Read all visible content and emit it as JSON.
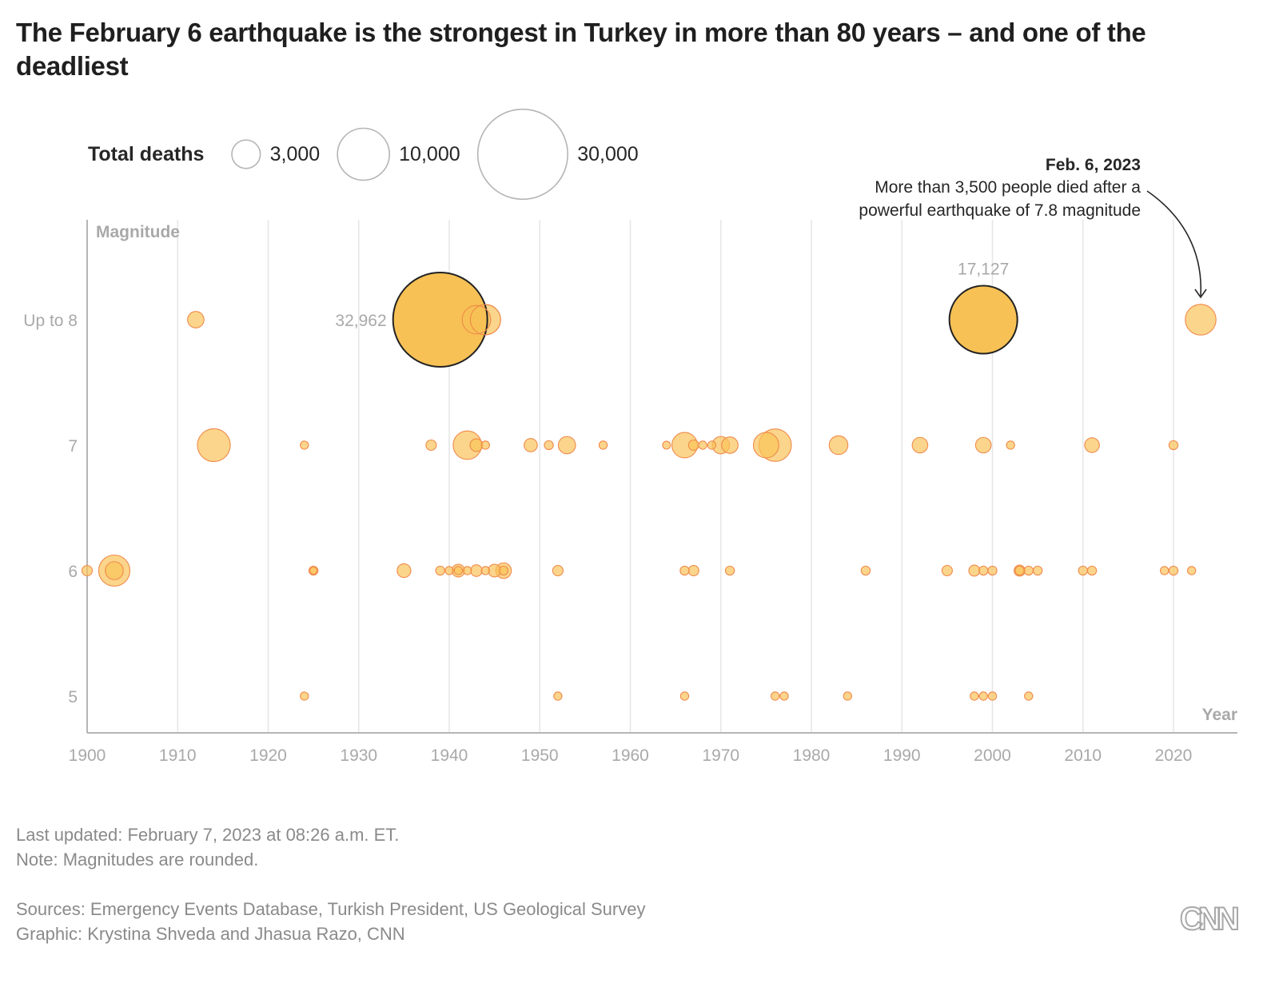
{
  "title": "The February 6 earthquake is the strongest in Turkey in more than 80 years – and one of the deadliest",
  "legend": {
    "label": "Total deaths",
    "items": [
      {
        "value": 3000,
        "label": "3,000"
      },
      {
        "value": 10000,
        "label": "10,000"
      },
      {
        "value": 30000,
        "label": "30,000"
      }
    ]
  },
  "annotation": {
    "heading": "Feb. 6, 2023",
    "line1": "More than 3,500 people died after a",
    "line2": "powerful earthquake of 7.8 magnitude"
  },
  "chart_data": {
    "type": "scatter",
    "subtype": "bubble",
    "title": "The February 6 earthquake is the strongest in Turkey in more than 80 years – and one of the deadliest",
    "xlabel": "Year",
    "ylabel": "Magnitude",
    "xlim": [
      1900,
      2027
    ],
    "x_ticks": [
      1900,
      1910,
      1920,
      1930,
      1940,
      1950,
      1960,
      1970,
      1980,
      1990,
      2000,
      2010,
      2020
    ],
    "y_categories": [
      {
        "value": 8,
        "label": "Up to 8"
      },
      {
        "value": 7,
        "label": "7"
      },
      {
        "value": 6,
        "label": "6"
      },
      {
        "value": 5,
        "label": "5"
      }
    ],
    "grid": true,
    "size_encoding": "Total deaths",
    "colors": {
      "fill": "#f9c35a",
      "fill_alpha": 0.7,
      "stroke": "#f08a4b",
      "highlight_stroke": "#222222",
      "highlight_fill": "#f7c155"
    },
    "labels": [
      {
        "year": 1939,
        "magnitude": 8,
        "text": "32,962",
        "position": "left"
      },
      {
        "year": 1999,
        "magnitude": 8,
        "text": "17,127",
        "position": "top"
      }
    ],
    "points": [
      {
        "year": 1912,
        "magnitude": 8,
        "deaths": 1000
      },
      {
        "year": 1939,
        "magnitude": 8,
        "deaths": 32962,
        "highlight": true
      },
      {
        "year": 1943,
        "magnitude": 8,
        "deaths": 3000
      },
      {
        "year": 1944,
        "magnitude": 8,
        "deaths": 3400
      },
      {
        "year": 1999,
        "magnitude": 8,
        "deaths": 17127,
        "highlight": true
      },
      {
        "year": 2023,
        "magnitude": 8,
        "deaths": 3500,
        "annotated": true
      },
      {
        "year": 1914,
        "magnitude": 7,
        "deaths": 4000
      },
      {
        "year": 1924,
        "magnitude": 7,
        "deaths": 250
      },
      {
        "year": 1938,
        "magnitude": 7,
        "deaths": 400
      },
      {
        "year": 1942,
        "magnitude": 7,
        "deaths": 3000
      },
      {
        "year": 1943,
        "magnitude": 7,
        "deaths": 600
      },
      {
        "year": 1944,
        "magnitude": 7,
        "deaths": 250
      },
      {
        "year": 1949,
        "magnitude": 7,
        "deaths": 650
      },
      {
        "year": 1951,
        "magnitude": 7,
        "deaths": 300
      },
      {
        "year": 1953,
        "magnitude": 7,
        "deaths": 1100
      },
      {
        "year": 1957,
        "magnitude": 7,
        "deaths": 250
      },
      {
        "year": 1964,
        "magnitude": 7,
        "deaths": 230
      },
      {
        "year": 1966,
        "magnitude": 7,
        "deaths": 2400
      },
      {
        "year": 1967,
        "magnitude": 7,
        "deaths": 400
      },
      {
        "year": 1968,
        "magnitude": 7,
        "deaths": 250
      },
      {
        "year": 1969,
        "magnitude": 7,
        "deaths": 250
      },
      {
        "year": 1970,
        "magnitude": 7,
        "deaths": 1100
      },
      {
        "year": 1971,
        "magnitude": 7,
        "deaths": 1000
      },
      {
        "year": 1975,
        "magnitude": 7,
        "deaths": 2400
      },
      {
        "year": 1976,
        "magnitude": 7,
        "deaths": 3900
      },
      {
        "year": 1983,
        "magnitude": 7,
        "deaths": 1300
      },
      {
        "year": 1992,
        "magnitude": 7,
        "deaths": 900
      },
      {
        "year": 1999,
        "magnitude": 7,
        "deaths": 900
      },
      {
        "year": 2002,
        "magnitude": 7,
        "deaths": 250
      },
      {
        "year": 2011,
        "magnitude": 7,
        "deaths": 800
      },
      {
        "year": 2020,
        "magnitude": 7,
        "deaths": 300
      },
      {
        "year": 1900,
        "magnitude": 6,
        "deaths": 400
      },
      {
        "year": 1903,
        "magnitude": 6,
        "deaths": 3600
      },
      {
        "year": 1903,
        "magnitude": 6,
        "deaths": 1200
      },
      {
        "year": 1925,
        "magnitude": 6,
        "deaths": 300
      },
      {
        "year": 1925,
        "magnitude": 6,
        "deaths": 150
      },
      {
        "year": 1935,
        "magnitude": 6,
        "deaths": 700
      },
      {
        "year": 1939,
        "magnitude": 6,
        "deaths": 300
      },
      {
        "year": 1940,
        "magnitude": 6,
        "deaths": 250
      },
      {
        "year": 1941,
        "magnitude": 6,
        "deaths": 600
      },
      {
        "year": 1941,
        "magnitude": 6,
        "deaths": 250
      },
      {
        "year": 1942,
        "magnitude": 6,
        "deaths": 250
      },
      {
        "year": 1943,
        "magnitude": 6,
        "deaths": 500
      },
      {
        "year": 1944,
        "magnitude": 6,
        "deaths": 250
      },
      {
        "year": 1945,
        "magnitude": 6,
        "deaths": 600
      },
      {
        "year": 1946,
        "magnitude": 6,
        "deaths": 900
      },
      {
        "year": 1946,
        "magnitude": 6,
        "deaths": 300
      },
      {
        "year": 1952,
        "magnitude": 6,
        "deaths": 400
      },
      {
        "year": 1966,
        "magnitude": 6,
        "deaths": 300
      },
      {
        "year": 1967,
        "magnitude": 6,
        "deaths": 400
      },
      {
        "year": 1971,
        "magnitude": 6,
        "deaths": 300
      },
      {
        "year": 1986,
        "magnitude": 6,
        "deaths": 300
      },
      {
        "year": 1995,
        "magnitude": 6,
        "deaths": 400
      },
      {
        "year": 1998,
        "magnitude": 6,
        "deaths": 450
      },
      {
        "year": 1999,
        "magnitude": 6,
        "deaths": 300
      },
      {
        "year": 2000,
        "magnitude": 6,
        "deaths": 300
      },
      {
        "year": 2003,
        "magnitude": 6,
        "deaths": 450
      },
      {
        "year": 2003,
        "magnitude": 6,
        "deaths": 300
      },
      {
        "year": 2004,
        "magnitude": 6,
        "deaths": 300
      },
      {
        "year": 2005,
        "magnitude": 6,
        "deaths": 300
      },
      {
        "year": 2010,
        "magnitude": 6,
        "deaths": 300
      },
      {
        "year": 2011,
        "magnitude": 6,
        "deaths": 300
      },
      {
        "year": 2019,
        "magnitude": 6,
        "deaths": 250
      },
      {
        "year": 2020,
        "magnitude": 6,
        "deaths": 300
      },
      {
        "year": 2022,
        "magnitude": 6,
        "deaths": 250
      },
      {
        "year": 1924,
        "magnitude": 5,
        "deaths": 250
      },
      {
        "year": 1952,
        "magnitude": 5,
        "deaths": 250
      },
      {
        "year": 1966,
        "magnitude": 5,
        "deaths": 250
      },
      {
        "year": 1976,
        "magnitude": 5,
        "deaths": 250
      },
      {
        "year": 1977,
        "magnitude": 5,
        "deaths": 250
      },
      {
        "year": 1984,
        "magnitude": 5,
        "deaths": 250
      },
      {
        "year": 1998,
        "magnitude": 5,
        "deaths": 250
      },
      {
        "year": 1999,
        "magnitude": 5,
        "deaths": 250
      },
      {
        "year": 2000,
        "magnitude": 5,
        "deaths": 250
      },
      {
        "year": 2004,
        "magnitude": 5,
        "deaths": 250
      }
    ]
  },
  "footer": {
    "updated": "Last updated: February 7, 2023 at 08:26 a.m. ET.",
    "note": "Note: Magnitudes are rounded.",
    "sources": "Sources: Emergency Events Database, Turkish President, US Geological Survey",
    "credit": "Graphic: Krystina Shveda and Jhasua Razo, CNN",
    "logo": "CNN"
  }
}
